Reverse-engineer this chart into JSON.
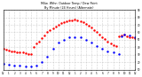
{
  "title_line1": "Milw. Wthr: Outdoor Temp / Dew Point",
  "title_line2": "By Minute (24 Hours) (Alternate)",
  "bg_color": "#ffffff",
  "plot_bg_color": "#ffffff",
  "text_color": "#000000",
  "grid_color": "#aaaaaa",
  "temp_color": "#ff0000",
  "dew_color": "#0000ff",
  "x_start": 0,
  "x_end": 1440,
  "y_min": 10,
  "y_max": 90,
  "temp_x": [
    0,
    30,
    60,
    90,
    120,
    150,
    180,
    210,
    240,
    270,
    300,
    330,
    360,
    390,
    420,
    450,
    480,
    510,
    540,
    570,
    600,
    630,
    660,
    690,
    720,
    750,
    780,
    810,
    840,
    870,
    900,
    930,
    960,
    990,
    1020,
    1050,
    1080,
    1110,
    1140,
    1170,
    1200,
    1230,
    1260,
    1290,
    1320,
    1350,
    1380,
    1410,
    1440
  ],
  "temp_y": [
    38,
    37,
    36,
    35,
    35,
    34,
    33,
    33,
    32,
    31,
    31,
    40,
    45,
    48,
    52,
    56,
    60,
    63,
    65,
    68,
    70,
    72,
    74,
    75,
    76,
    76,
    77,
    76,
    75,
    73,
    71,
    69,
    66,
    63,
    60,
    57,
    54,
    51,
    48,
    45,
    43,
    42,
    55,
    56,
    57,
    55,
    54,
    53,
    52
  ],
  "dew_x": [
    0,
    60,
    120,
    180,
    240,
    300,
    360,
    420,
    480,
    540,
    600,
    660,
    720,
    780,
    840,
    900,
    960,
    1020,
    1080,
    1140,
    1200,
    1260,
    1290,
    1320,
    1380,
    1440
  ],
  "dew_y": [
    18,
    17,
    16,
    16,
    15,
    15,
    16,
    20,
    28,
    38,
    46,
    50,
    53,
    54,
    53,
    50,
    46,
    42,
    38,
    35,
    33,
    31,
    55,
    57,
    56,
    54
  ],
  "x_ticks": [
    0,
    60,
    120,
    180,
    240,
    300,
    360,
    420,
    480,
    540,
    600,
    660,
    720,
    780,
    840,
    900,
    960,
    1020,
    1080,
    1140,
    1200,
    1260,
    1320,
    1380,
    1440
  ],
  "x_tick_labels": [
    "12",
    "1",
    "2",
    "3",
    "4",
    "5",
    "6",
    "7",
    "8",
    "9",
    "10",
    "11",
    "12",
    "1",
    "2",
    "3",
    "4",
    "5",
    "6",
    "7",
    "8",
    "9",
    "10",
    "11",
    "12"
  ],
  "y_ticks": [
    10,
    20,
    30,
    40,
    50,
    60,
    70,
    80,
    90
  ],
  "marker_size": 1.5
}
